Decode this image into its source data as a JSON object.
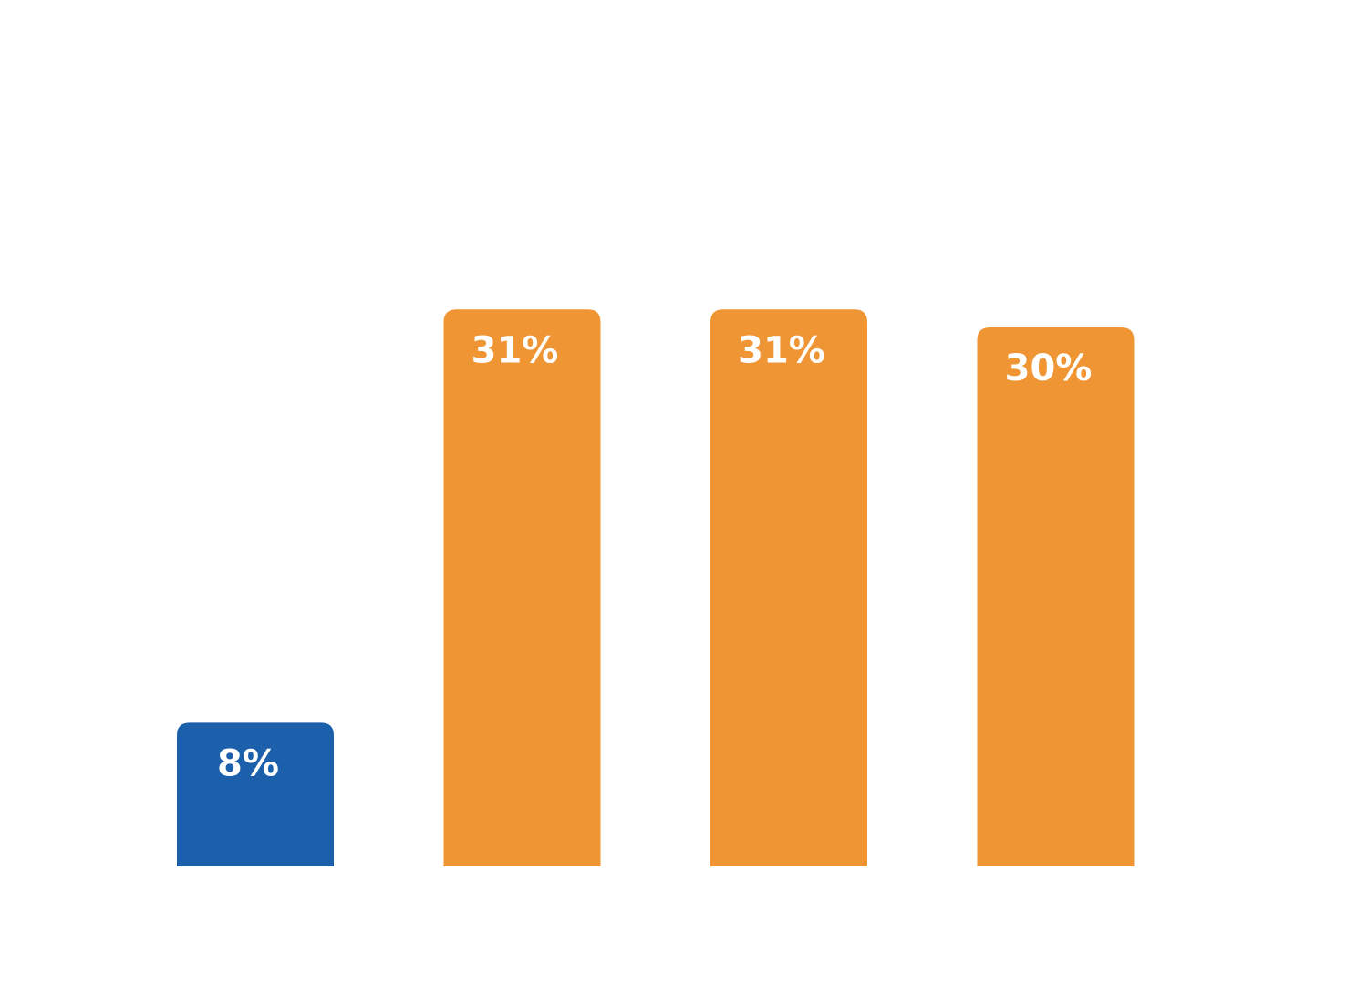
{
  "chart_data": {
    "type": "bar",
    "categories": [
      "",
      "",
      "",
      ""
    ],
    "values": [
      8,
      31,
      31,
      30
    ],
    "labels": [
      "8%",
      "31%",
      "31%",
      "30%"
    ],
    "colors": [
      "#1c5fab",
      "#f09534",
      "#f09534",
      "#f09534"
    ],
    "title": "",
    "xlabel": "",
    "ylabel": "",
    "ylim": [
      0,
      40
    ],
    "grid": false,
    "legend": "none"
  }
}
